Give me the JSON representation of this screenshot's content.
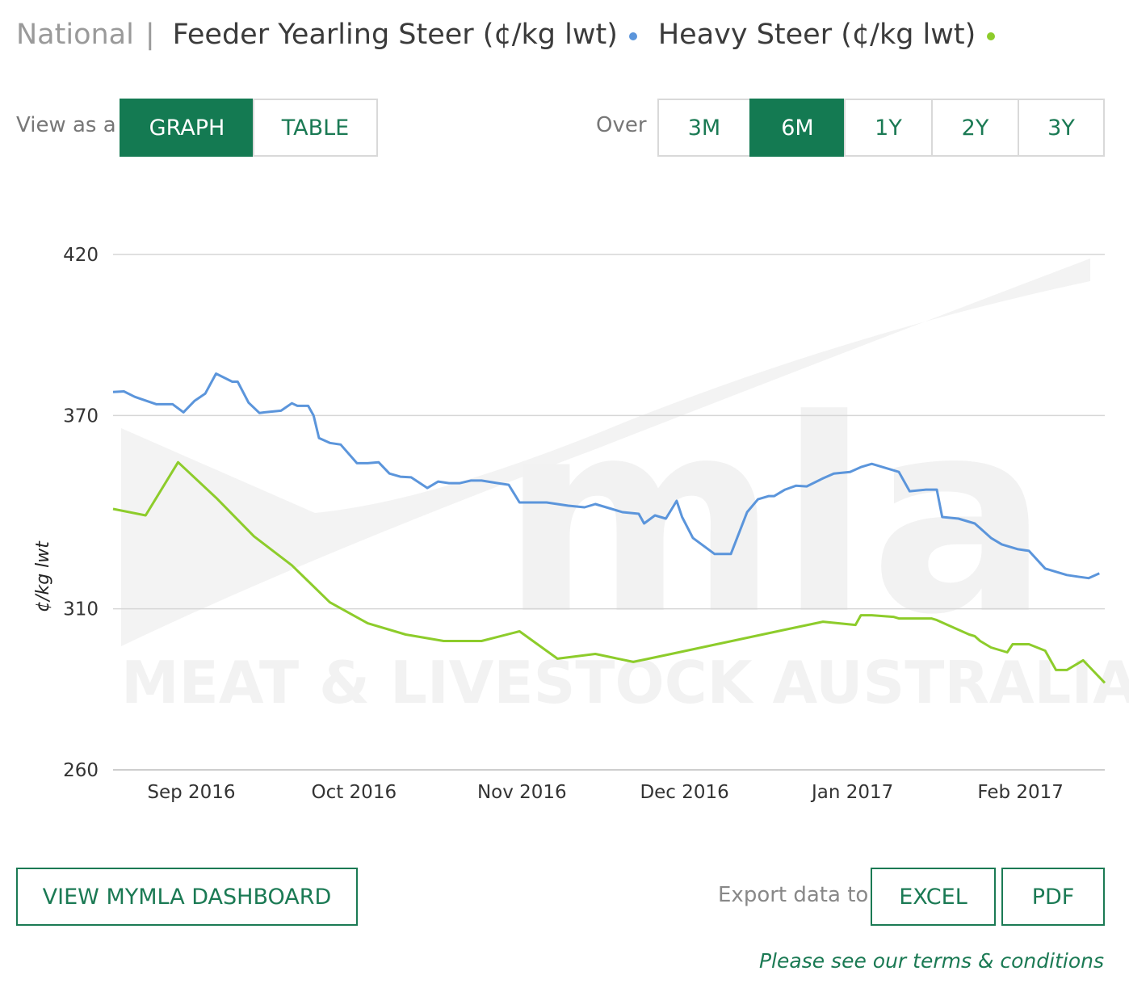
{
  "header": {
    "region": "National",
    "separator": "|",
    "series1_title": "Feeder Yearling Steer (¢/kg lwt)",
    "series2_title": "Heavy Steer (¢/kg lwt)"
  },
  "view_toggle": {
    "label": "View as a",
    "graph": "GRAPH",
    "table": "TABLE",
    "selected": "GRAPH"
  },
  "range": {
    "label": "Over",
    "options": [
      "3M",
      "6M",
      "1Y",
      "2Y",
      "3Y"
    ],
    "selected": "6M"
  },
  "colors": {
    "series1": "#5b95db",
    "series2": "#8dcc2b",
    "accent": "#147a52"
  },
  "watermark": {
    "logo_text": "mla",
    "name": "MEAT & LIVESTOCK AUSTRALIA"
  },
  "chart_data": {
    "type": "line",
    "xlabel": "",
    "ylabel": "¢/kg lwt",
    "ylim": [
      260,
      420
    ],
    "yticks": [
      420,
      370,
      310,
      260
    ],
    "xlim": [
      "2016-08-25",
      "2017-02-24"
    ],
    "xticks": [
      {
        "date": "2016-09-01",
        "label": "Sep 2016"
      },
      {
        "date": "2016-10-01",
        "label": "Oct 2016"
      },
      {
        "date": "2016-11-01",
        "label": "Nov 2016"
      },
      {
        "date": "2016-12-01",
        "label": "Dec 2016"
      },
      {
        "date": "2017-01-01",
        "label": "Jan 2017"
      },
      {
        "date": "2017-02-01",
        "label": "Feb 2017"
      }
    ],
    "grid": true,
    "series": [
      {
        "name": "Feeder Yearling Steer (¢/kg lwt)",
        "x": [
          "2016-08-25",
          "2016-08-27",
          "2016-08-29",
          "2016-08-30",
          "2016-09-02",
          "2016-09-05",
          "2016-09-07",
          "2016-09-09",
          "2016-09-11",
          "2016-09-13",
          "2016-09-16",
          "2016-09-17",
          "2016-09-19",
          "2016-09-21",
          "2016-09-22",
          "2016-09-25",
          "2016-09-27",
          "2016-09-28",
          "2016-09-30",
          "2016-10-01",
          "2016-10-02",
          "2016-10-04",
          "2016-10-06",
          "2016-10-09",
          "2016-10-11",
          "2016-10-13",
          "2016-10-15",
          "2016-10-17",
          "2016-10-19",
          "2016-10-22",
          "2016-10-24",
          "2016-10-26",
          "2016-10-28",
          "2016-10-30",
          "2016-11-01",
          "2016-11-04",
          "2016-11-06",
          "2016-11-08",
          "2016-11-10",
          "2016-11-13",
          "2016-11-15",
          "2016-11-17",
          "2016-11-20",
          "2016-11-22",
          "2016-11-25",
          "2016-11-27",
          "2016-11-30",
          "2016-12-01",
          "2016-12-03",
          "2016-12-05",
          "2016-12-07",
          "2016-12-08",
          "2016-12-10",
          "2016-12-14",
          "2016-12-17",
          "2016-12-20",
          "2016-12-22",
          "2016-12-24",
          "2016-12-25",
          "2016-12-27",
          "2016-12-29",
          "2016-12-31",
          "2017-01-03",
          "2017-01-05",
          "2017-01-08",
          "2017-01-10",
          "2017-01-12",
          "2017-01-17",
          "2017-01-19",
          "2017-01-22",
          "2017-01-24",
          "2017-01-25",
          "2017-01-28",
          "2017-01-31",
          "2017-02-01",
          "2017-02-03",
          "2017-02-05",
          "2017-02-08",
          "2017-02-10",
          "2017-02-13",
          "2017-02-14",
          "2017-02-17",
          "2017-02-19",
          "2017-02-21",
          "2017-02-23"
        ],
        "values": [
          377.3,
          377.5,
          375.8,
          375.2,
          373.5,
          373.5,
          371.0,
          374.5,
          376.8,
          383.0,
          380.5,
          380.5,
          374.0,
          370.8,
          371.0,
          371.5,
          373.8,
          373.0,
          373.0,
          370.0,
          363.0,
          361.5,
          361.0,
          355.2,
          355.2,
          355.5,
          352.0,
          351.0,
          350.8,
          347.5,
          349.5,
          349.0,
          349.0,
          349.8,
          349.8,
          349.0,
          348.5,
          343.0,
          343.0,
          343.0,
          342.5,
          342.0,
          341.5,
          342.5,
          341.0,
          340.0,
          339.5,
          336.5,
          339.0,
          338.0,
          343.5,
          338.5,
          332.0,
          327.0,
          327.0,
          340.0,
          344.0,
          345.0,
          345.0,
          347.0,
          348.2,
          348.0,
          350.5,
          352.0,
          352.5,
          354.0,
          355.0,
          352.5,
          346.5,
          347.0,
          347.0,
          338.5,
          338.0,
          336.5,
          335.0,
          332.0,
          330.0,
          328.5,
          328.0,
          322.5,
          322.0,
          320.5,
          320.0,
          319.5,
          321.0
        ]
      },
      {
        "name": "Heavy Steer (¢/kg lwt)",
        "x": [
          "2016-08-25",
          "2016-08-31",
          "2016-09-06",
          "2016-09-13",
          "2016-09-20",
          "2016-09-27",
          "2016-10-04",
          "2016-10-11",
          "2016-10-18",
          "2016-10-25",
          "2016-11-01",
          "2016-11-08",
          "2016-11-15",
          "2016-11-22",
          "2016-11-29",
          "2016-12-06",
          "2016-12-13",
          "2016-12-20",
          "2016-12-27",
          "2017-01-03",
          "2017-01-09",
          "2017-01-10",
          "2017-01-12",
          "2017-01-16",
          "2017-01-17",
          "2017-01-20",
          "2017-01-23",
          "2017-01-24",
          "2017-01-26",
          "2017-01-30",
          "2017-01-31",
          "2017-02-01",
          "2017-02-03",
          "2017-02-06",
          "2017-02-07",
          "2017-02-10",
          "2017-02-13",
          "2017-02-15",
          "2017-02-16",
          "2017-02-17",
          "2017-02-20",
          "2017-02-22",
          "2017-02-24"
        ],
        "values": [
          341.0,
          339.0,
          355.5,
          344.5,
          332.5,
          323.5,
          312.0,
          305.5,
          302.0,
          300.0,
          300.0,
          303.0,
          294.5,
          296.0,
          293.5,
          296.0,
          298.5,
          301.0,
          303.5,
          306.0,
          305.0,
          308.0,
          308.0,
          307.5,
          307.0,
          307.0,
          307.0,
          306.5,
          305.0,
          302.0,
          301.5,
          300.0,
          298.0,
          296.5,
          299.0,
          299.0,
          297.0,
          291.0,
          291.0,
          291.0,
          294.0,
          290.5,
          287.0
        ]
      }
    ]
  },
  "footer": {
    "dashboard_button": "VIEW MYMLA DASHBOARD",
    "export_label": "Export data to",
    "excel": "EXCEL",
    "pdf": "PDF",
    "terms": "Please see our terms & conditions"
  }
}
